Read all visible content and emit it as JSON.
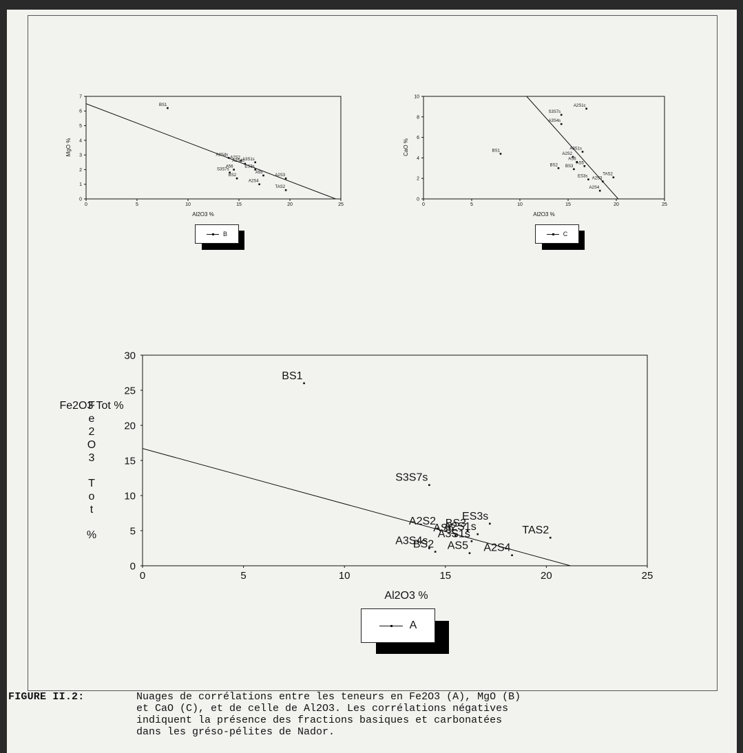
{
  "caption": {
    "label": "FIGURE II.2:",
    "text": "Nuages de corrélations entre les teneurs en Fe2O3 (A), MgO (B)\net CaO (C), et de celle de Al2O3. Les corrélations négatives\nindiquent la présence des fractions basiques et carbonatées\ndans les gréso-pélites de Nador."
  },
  "chart_data": [
    {
      "id": "B",
      "type": "scatter",
      "title": "",
      "xlabel": "Al2O3 %",
      "ylabel": "MgO %",
      "xlim": [
        0,
        25
      ],
      "ylim": [
        0,
        7
      ],
      "xticks": [
        0,
        5,
        10,
        15,
        20,
        25
      ],
      "yticks": [
        0,
        1,
        2,
        3,
        4,
        5,
        6,
        7
      ],
      "legend": "B",
      "legend_placement": "below",
      "regression_line": [
        [
          0,
          6.5
        ],
        [
          24.5,
          0
        ]
      ],
      "points": [
        {
          "label": "BS1",
          "x": 8.0,
          "y": 6.2
        },
        {
          "label": "A3S4s",
          "x": 14.0,
          "y": 2.8
        },
        {
          "label": "A2S2",
          "x": 15.2,
          "y": 2.6
        },
        {
          "label": "A2S4s",
          "x": 15.6,
          "y": 2.4
        },
        {
          "label": "A3S1s",
          "x": 16.6,
          "y": 2.5
        },
        {
          "label": "ES3s",
          "x": 16.6,
          "y": 2.0
        },
        {
          "label": "A56",
          "x": 14.5,
          "y": 2.0
        },
        {
          "label": "S3S7s",
          "x": 14.1,
          "y": 1.8
        },
        {
          "label": "BS2",
          "x": 14.8,
          "y": 1.4
        },
        {
          "label": "A55",
          "x": 17.4,
          "y": 1.6
        },
        {
          "label": "A2S3",
          "x": 19.6,
          "y": 1.4
        },
        {
          "label": "A2S4",
          "x": 17.0,
          "y": 1.0
        },
        {
          "label": "TAS2",
          "x": 19.6,
          "y": 0.6
        }
      ]
    },
    {
      "id": "C",
      "type": "scatter",
      "title": "",
      "xlabel": "Al2O3 %",
      "ylabel": "CaO %",
      "xlim": [
        0,
        25
      ],
      "ylim": [
        0,
        10
      ],
      "xticks": [
        0,
        5,
        10,
        15,
        20,
        25
      ],
      "yticks": [
        0,
        2,
        4,
        6,
        8,
        10
      ],
      "legend": "C",
      "legend_placement": "below",
      "regression_line": [
        [
          10.7,
          10
        ],
        [
          20.2,
          0
        ]
      ],
      "points": [
        {
          "label": "A2S1c",
          "x": 16.9,
          "y": 8.8
        },
        {
          "label": "S3S7s",
          "x": 14.3,
          "y": 8.2
        },
        {
          "label": "A3S4s",
          "x": 14.3,
          "y": 7.3
        },
        {
          "label": "BS1",
          "x": 8.0,
          "y": 4.4
        },
        {
          "label": "A3S1s",
          "x": 16.5,
          "y": 4.6
        },
        {
          "label": "A2S2",
          "x": 15.5,
          "y": 4.1
        },
        {
          "label": "AS6",
          "x": 15.9,
          "y": 3.6
        },
        {
          "label": "AS5",
          "x": 16.7,
          "y": 3.2
        },
        {
          "label": "BS2",
          "x": 14.0,
          "y": 3.0
        },
        {
          "label": "BS3",
          "x": 15.6,
          "y": 2.9
        },
        {
          "label": "TAS2",
          "x": 19.7,
          "y": 2.1
        },
        {
          "label": "ES3s",
          "x": 17.1,
          "y": 1.9
        },
        {
          "label": "A2S3",
          "x": 18.6,
          "y": 1.7
        },
        {
          "label": "A2S4",
          "x": 18.3,
          "y": 0.8
        }
      ]
    },
    {
      "id": "A",
      "type": "scatter",
      "title": "",
      "xlabel": "Al2O3 %",
      "ylabel": "Fe2O3 Tot %",
      "xlim": [
        0,
        25
      ],
      "ylim": [
        0,
        30
      ],
      "xticks": [
        0,
        5,
        10,
        15,
        20,
        25
      ],
      "yticks": [
        0,
        5,
        10,
        15,
        20,
        25,
        30
      ],
      "legend": "A",
      "legend_placement": "below",
      "regression_line": [
        [
          0,
          16.7
        ],
        [
          21.2,
          0
        ]
      ],
      "points": [
        {
          "label": "BS1",
          "x": 8.0,
          "y": 26.0
        },
        {
          "label": "S3S7s",
          "x": 14.2,
          "y": 11.5
        },
        {
          "label": "BS3",
          "x": 16.1,
          "y": 5.0
        },
        {
          "label": "ES3s",
          "x": 17.2,
          "y": 6.0
        },
        {
          "label": "A2S2",
          "x": 14.6,
          "y": 5.3
        },
        {
          "label": "A2S1s",
          "x": 16.6,
          "y": 4.5
        },
        {
          "label": "AS6",
          "x": 15.5,
          "y": 4.3
        },
        {
          "label": "A3S1s",
          "x": 16.3,
          "y": 3.5
        },
        {
          "label": "TAS2",
          "x": 20.2,
          "y": 4.0
        },
        {
          "label": "A3S4s",
          "x": 14.2,
          "y": 2.5
        },
        {
          "label": "BS2",
          "x": 14.5,
          "y": 2.0
        },
        {
          "label": "AS5",
          "x": 16.2,
          "y": 1.8
        },
        {
          "label": "A2S4",
          "x": 18.3,
          "y": 1.5
        }
      ]
    }
  ]
}
